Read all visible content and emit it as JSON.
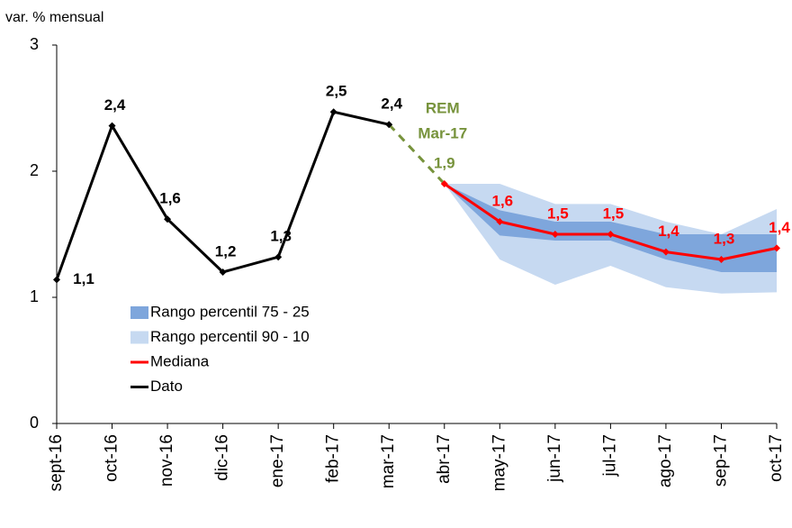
{
  "chart_data": {
    "type": "line",
    "y_label": "var. % mensual",
    "categories": [
      "sept-16",
      "oct-16",
      "nov-16",
      "dic-16",
      "ene-17",
      "feb-17",
      "mar-17",
      "abr-17",
      "may-17",
      "jun-17",
      "jul-17",
      "ago-17",
      "sep-17",
      "oct-17"
    ],
    "ylim": [
      0,
      3
    ],
    "yticks": [
      0,
      1,
      2,
      3
    ],
    "annotation": [
      "REM",
      "Mar-17"
    ],
    "annotation_color": "#77933c",
    "bands": [
      {
        "name": "Rango percentil 75 - 25",
        "color": "#7ea6dc",
        "lower": [
          null,
          null,
          null,
          null,
          null,
          null,
          null,
          1.9,
          1.49,
          1.45,
          1.45,
          1.3,
          1.2,
          1.2
        ],
        "upper": [
          null,
          null,
          null,
          null,
          null,
          null,
          null,
          1.9,
          1.69,
          1.6,
          1.6,
          1.5,
          1.5,
          1.5
        ]
      },
      {
        "name": "Rango percentil 90 - 10",
        "color": "#c6d9f1",
        "lower": [
          null,
          null,
          null,
          null,
          null,
          null,
          null,
          1.9,
          1.3,
          1.1,
          1.25,
          1.08,
          1.03,
          1.04
        ],
        "upper": [
          null,
          null,
          null,
          null,
          null,
          null,
          null,
          1.9,
          1.9,
          1.74,
          1.74,
          1.6,
          1.5,
          1.7
        ]
      }
    ],
    "series": [
      {
        "name": "Mediana",
        "color": "#ff0000",
        "values": [
          null,
          null,
          null,
          null,
          null,
          null,
          null,
          1.9,
          1.6,
          1.5,
          1.5,
          1.36,
          1.3,
          1.39
        ],
        "value_labels": [
          null,
          null,
          null,
          null,
          null,
          null,
          null,
          "1,9",
          "1,6",
          "1,5",
          "1,5",
          "1,4",
          "1,3",
          "1,4"
        ]
      },
      {
        "name": "Dato",
        "color": "#000000",
        "values": [
          1.14,
          2.36,
          1.62,
          1.2,
          1.32,
          2.47,
          2.37,
          null,
          null,
          null,
          null,
          null,
          null,
          null
        ],
        "value_labels": [
          "1,1",
          "2,4",
          "1,6",
          "1,2",
          "1,3",
          "2,5",
          "2,4",
          null,
          null,
          null,
          null,
          null,
          null,
          null
        ]
      }
    ]
  }
}
